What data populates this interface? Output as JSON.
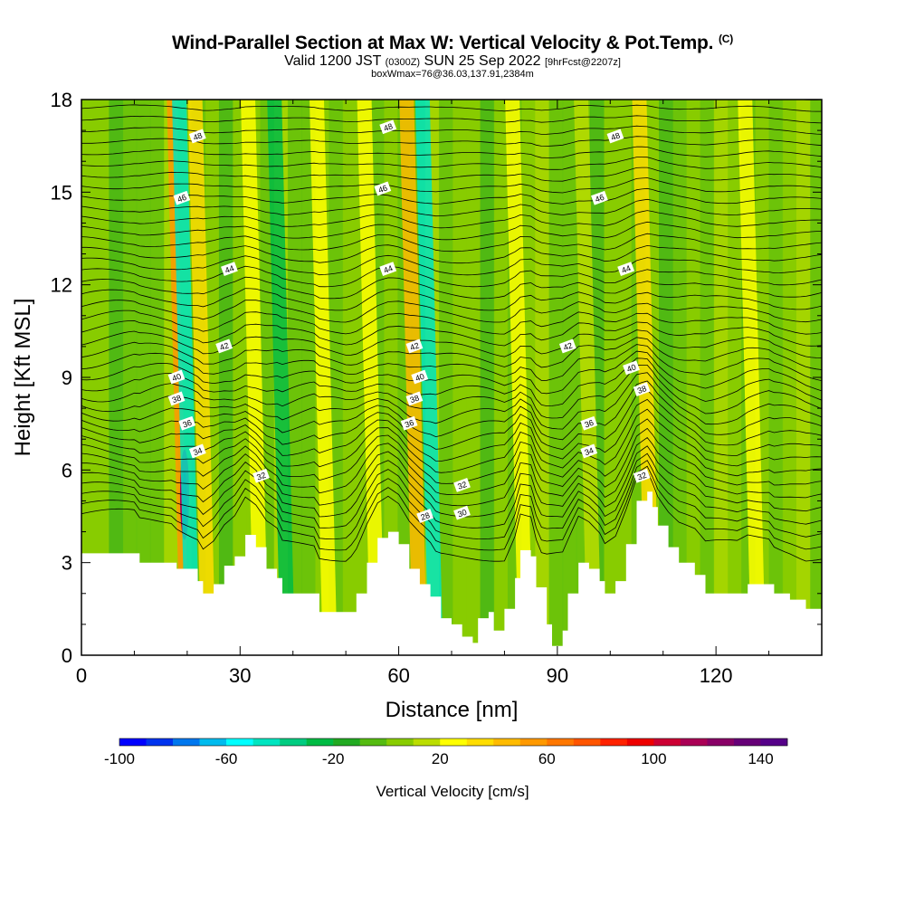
{
  "header": {
    "title_main": "Wind-Parallel Section at Max W: Vertical Velocity & Pot.Temp.",
    "title_mark": "(C)",
    "valid_prefix": "Valid 1200 JST",
    "valid_utc": "(0300Z)",
    "valid_date": "SUN 25 Sep 2022",
    "valid_fcst": "[9hrFcst@2207z]",
    "box_info": "boxWmax=76@36.03,137.91,2384m"
  },
  "chart_data": {
    "type": "heatmap",
    "xlabel": "Distance [nm]",
    "ylabel": "Height [Kft MSL]",
    "xlim": [
      0,
      140
    ],
    "ylim": [
      0,
      18
    ],
    "x_ticks": [
      0,
      30,
      60,
      90,
      120
    ],
    "y_ticks": [
      0,
      3,
      6,
      9,
      12,
      15,
      18
    ],
    "colorbar": {
      "label": "Vertical Velocity [cm/s]",
      "range": [
        -100,
        150
      ],
      "tick_values": [
        -100,
        -60,
        -20,
        20,
        60,
        100,
        140
      ],
      "colors": [
        "#0000ff",
        "#0033ee",
        "#0077ee",
        "#00bbee",
        "#00ffff",
        "#00e5c0",
        "#00cc80",
        "#00bb44",
        "#22aa22",
        "#55bb11",
        "#88cc00",
        "#bbdd00",
        "#ffff00",
        "#ffdd00",
        "#ffbb00",
        "#ff9900",
        "#ff7700",
        "#ff5500",
        "#ff2200",
        "#ee0000",
        "#cc0033",
        "#aa0055",
        "#880066",
        "#660077",
        "#550088"
      ]
    },
    "velocity_columns": [
      {
        "x": 19.5,
        "w": 55,
        "kind": "strong_up"
      },
      {
        "x": 24,
        "w": 35,
        "kind": "up"
      },
      {
        "x": 21,
        "w": -45,
        "kind": "down"
      },
      {
        "x": 34,
        "w": 25,
        "kind": "up"
      },
      {
        "x": 39,
        "w": -30,
        "kind": "down"
      },
      {
        "x": 47,
        "w": 22,
        "kind": "up"
      },
      {
        "x": 56,
        "w": 24,
        "kind": "up"
      },
      {
        "x": 64,
        "w": 45,
        "kind": "up"
      },
      {
        "x": 67,
        "w": -45,
        "kind": "down"
      },
      {
        "x": 84,
        "w": 22,
        "kind": "up"
      },
      {
        "x": 97,
        "w": 18,
        "kind": "up"
      },
      {
        "x": 108,
        "w": 30,
        "kind": "up"
      },
      {
        "x": 128,
        "w": 28,
        "kind": "up"
      }
    ],
    "terrain": [
      {
        "x": 0,
        "h": 3.3
      },
      {
        "x": 10,
        "h": 3.3
      },
      {
        "x": 11,
        "h": 3.0
      },
      {
        "x": 17,
        "h": 3.0
      },
      {
        "x": 18,
        "h": 2.8
      },
      {
        "x": 22,
        "h": 2.4
      },
      {
        "x": 23,
        "h": 2.0
      },
      {
        "x": 25,
        "h": 2.3
      },
      {
        "x": 27,
        "h": 2.9
      },
      {
        "x": 29,
        "h": 3.2
      },
      {
        "x": 31,
        "h": 3.9
      },
      {
        "x": 33,
        "h": 3.5
      },
      {
        "x": 35,
        "h": 2.8
      },
      {
        "x": 37,
        "h": 2.5
      },
      {
        "x": 38,
        "h": 2.0
      },
      {
        "x": 44,
        "h": 2.0
      },
      {
        "x": 45,
        "h": 1.4
      },
      {
        "x": 50,
        "h": 1.4
      },
      {
        "x": 52,
        "h": 2.0
      },
      {
        "x": 54,
        "h": 3.0
      },
      {
        "x": 56,
        "h": 3.8
      },
      {
        "x": 58,
        "h": 4.0
      },
      {
        "x": 60,
        "h": 3.6
      },
      {
        "x": 62,
        "h": 2.8
      },
      {
        "x": 64,
        "h": 2.3
      },
      {
        "x": 66,
        "h": 1.9
      },
      {
        "x": 68,
        "h": 1.2
      },
      {
        "x": 70,
        "h": 1.0
      },
      {
        "x": 72,
        "h": 0.6
      },
      {
        "x": 74,
        "h": 0.4
      },
      {
        "x": 75,
        "h": 1.2
      },
      {
        "x": 77,
        "h": 1.4
      },
      {
        "x": 78,
        "h": 0.8
      },
      {
        "x": 80,
        "h": 1.5
      },
      {
        "x": 82,
        "h": 2.5
      },
      {
        "x": 83,
        "h": 3.4
      },
      {
        "x": 85,
        "h": 3.2
      },
      {
        "x": 86,
        "h": 2.2
      },
      {
        "x": 88,
        "h": 1.0
      },
      {
        "x": 89,
        "h": 0.3
      },
      {
        "x": 91,
        "h": 0.8
      },
      {
        "x": 92,
        "h": 2.0
      },
      {
        "x": 94,
        "h": 3.0
      },
      {
        "x": 96,
        "h": 2.8
      },
      {
        "x": 98,
        "h": 2.4
      },
      {
        "x": 99,
        "h": 2.0
      },
      {
        "x": 101,
        "h": 2.4
      },
      {
        "x": 103,
        "h": 3.6
      },
      {
        "x": 105,
        "h": 5.0
      },
      {
        "x": 107,
        "h": 5.3
      },
      {
        "x": 108,
        "h": 4.8
      },
      {
        "x": 109,
        "h": 4.2
      },
      {
        "x": 111,
        "h": 3.5
      },
      {
        "x": 113,
        "h": 3.0
      },
      {
        "x": 116,
        "h": 2.6
      },
      {
        "x": 118,
        "h": 2.0
      },
      {
        "x": 124,
        "h": 2.0
      },
      {
        "x": 126,
        "h": 2.3
      },
      {
        "x": 130,
        "h": 2.3
      },
      {
        "x": 131,
        "h": 2.0
      },
      {
        "x": 134,
        "h": 1.8
      },
      {
        "x": 137,
        "h": 1.5
      },
      {
        "x": 140,
        "h": 1.3
      }
    ],
    "contours": [
      {
        "value": 48,
        "levels": [
          16.8
        ],
        "labels": [
          "48",
          "48",
          "48"
        ],
        "label_x": [
          22,
          58,
          101
        ]
      },
      {
        "value": 46,
        "levels": [
          14.8
        ],
        "labels": [
          "46",
          "46",
          "46"
        ],
        "label_x": [
          19,
          57,
          98
        ]
      },
      {
        "value": 44,
        "levels": [
          12.2
        ],
        "labels": [
          "44",
          "44",
          "44"
        ],
        "label_x": [
          28,
          58,
          103
        ]
      },
      {
        "value": 42,
        "levels": [
          10.0
        ],
        "labels": [
          "42",
          "42",
          "42"
        ],
        "label_x": [
          27,
          63,
          92
        ]
      },
      {
        "value": 40,
        "levels": [
          9.0
        ],
        "labels": [
          "40",
          "40",
          "40"
        ],
        "label_x": [
          18,
          64,
          104
        ]
      },
      {
        "value": 38,
        "levels": [
          8.3
        ],
        "labels": [
          "38",
          "38",
          "38"
        ],
        "label_x": [
          18,
          63,
          106
        ]
      },
      {
        "value": 36,
        "levels": [
          7.5
        ],
        "labels": [
          "36",
          "36",
          "36"
        ],
        "label_x": [
          20,
          62,
          96
        ]
      },
      {
        "value": 34,
        "levels": [
          6.6
        ],
        "labels": [
          "34",
          "34"
        ],
        "label_x": [
          22,
          96
        ]
      },
      {
        "value": 32,
        "levels": [
          5.5
        ],
        "labels": [
          "32",
          "32",
          "32"
        ],
        "label_x": [
          34,
          72,
          106
        ]
      },
      {
        "value": 30,
        "levels": [
          4.6
        ],
        "labels": [
          "30"
        ],
        "label_x": [
          72
        ]
      },
      {
        "value": 28,
        "levels": [
          4.5
        ],
        "labels": [
          "28"
        ],
        "label_x": [
          65
        ]
      }
    ]
  }
}
